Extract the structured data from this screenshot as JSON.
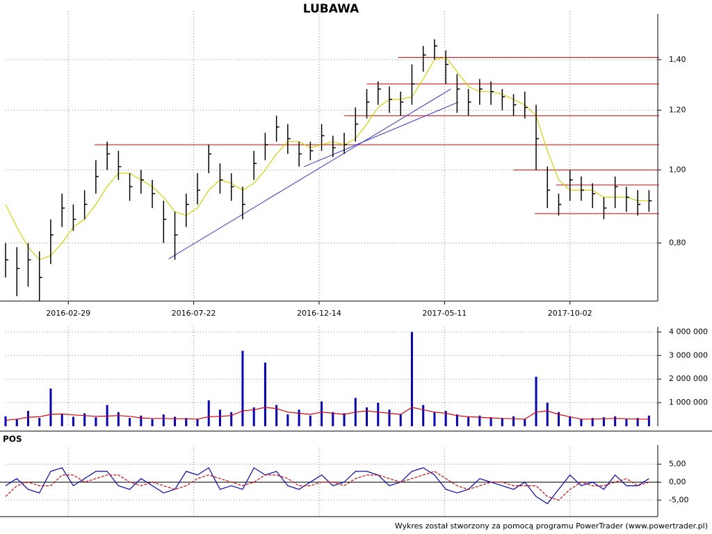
{
  "chart_data": [
    {
      "type": "ohlc",
      "title": "LUBAWA",
      "log_scale": true,
      "grid": true,
      "color": "#000000",
      "x": [
        0,
        9,
        18,
        27,
        36,
        45,
        54,
        63,
        72,
        81,
        90,
        99,
        108,
        117,
        126,
        135,
        144,
        153,
        162,
        171,
        180,
        189,
        198,
        207,
        216,
        225,
        234,
        243,
        252,
        261,
        270,
        279,
        288,
        297,
        306,
        315,
        324,
        333,
        342,
        351,
        360,
        369,
        378,
        387,
        396,
        405,
        414,
        423,
        432,
        441,
        450,
        459,
        468,
        477,
        486,
        495,
        504,
        513
      ],
      "high": [
        0.8,
        0.79,
        0.8,
        0.78,
        0.86,
        0.93,
        0.9,
        0.94,
        1.03,
        1.09,
        1.06,
        0.99,
        1.0,
        0.97,
        0.91,
        0.88,
        0.93,
        0.99,
        1.08,
        1.02,
        0.99,
        0.95,
        1.06,
        1.12,
        1.18,
        1.15,
        1.09,
        1.09,
        1.15,
        1.11,
        1.12,
        1.21,
        1.28,
        1.31,
        1.29,
        1.27,
        1.38,
        1.46,
        1.49,
        1.44,
        1.34,
        1.28,
        1.32,
        1.31,
        1.28,
        1.26,
        1.27,
        1.22,
        1.01,
        0.93,
        1.0,
        0.98,
        0.96,
        0.92,
        0.98,
        0.95,
        0.94,
        0.94
      ],
      "low": [
        0.72,
        0.68,
        0.7,
        0.67,
        0.75,
        0.84,
        0.83,
        0.86,
        0.93,
        1.0,
        0.97,
        0.91,
        0.93,
        0.89,
        0.8,
        0.76,
        0.84,
        0.9,
        0.99,
        0.93,
        0.91,
        0.86,
        0.97,
        1.03,
        1.09,
        1.05,
        1.01,
        1.03,
        1.06,
        1.04,
        1.05,
        1.09,
        1.17,
        1.22,
        1.19,
        1.18,
        1.22,
        1.35,
        1.4,
        1.3,
        1.19,
        1.18,
        1.22,
        1.22,
        1.2,
        1.18,
        1.17,
        1.0,
        0.89,
        0.87,
        0.91,
        0.91,
        0.89,
        0.86,
        0.89,
        0.88,
        0.87,
        0.88
      ],
      "close": [
        0.76,
        0.74,
        0.76,
        0.72,
        0.82,
        0.89,
        0.86,
        0.9,
        0.98,
        1.05,
        1.01,
        0.95,
        0.97,
        0.93,
        0.86,
        0.82,
        0.9,
        0.94,
        1.05,
        0.97,
        0.95,
        0.9,
        1.02,
        1.08,
        1.14,
        1.1,
        1.05,
        1.06,
        1.11,
        1.07,
        1.08,
        1.15,
        1.23,
        1.28,
        1.24,
        1.23,
        1.3,
        1.42,
        1.46,
        1.38,
        1.28,
        1.23,
        1.28,
        1.27,
        1.25,
        1.22,
        1.21,
        1.1,
        0.94,
        0.9,
        0.97,
        0.94,
        0.93,
        0.89,
        0.95,
        0.92,
        0.9,
        0.91
      ],
      "ma": {
        "color": "#d4d400",
        "values": [
          0.9,
          0.84,
          0.79,
          0.76,
          0.77,
          0.8,
          0.84,
          0.86,
          0.9,
          0.95,
          0.99,
          0.99,
          0.97,
          0.95,
          0.92,
          0.88,
          0.87,
          0.89,
          0.94,
          0.97,
          0.96,
          0.94,
          0.96,
          1.0,
          1.05,
          1.09,
          1.09,
          1.07,
          1.08,
          1.09,
          1.08,
          1.1,
          1.15,
          1.21,
          1.24,
          1.24,
          1.25,
          1.32,
          1.4,
          1.41,
          1.35,
          1.29,
          1.27,
          1.27,
          1.26,
          1.24,
          1.22,
          1.18,
          1.06,
          0.97,
          0.94,
          0.94,
          0.94,
          0.92,
          0.92,
          0.92,
          0.91,
          0.91
        ]
      },
      "levels": {
        "color": "#e00000",
        "items": [
          {
            "y": 1.41,
            "from": 313
          },
          {
            "y": 1.3,
            "from": 288
          },
          {
            "y": 1.18,
            "from": 270
          },
          {
            "y": 1.08,
            "from": 71
          },
          {
            "y": 1.0,
            "from": 405
          },
          {
            "y": 0.955,
            "from": 439
          },
          {
            "y": 0.875,
            "from": 422
          }
        ]
      },
      "trendlines": {
        "color": "#3333dd",
        "items": [
          {
            "x": [
              130,
              355
            ],
            "y": [
              0.762,
              1.28
            ]
          },
          {
            "x": [
              238,
              361
            ],
            "y": [
              1.01,
              1.23
            ]
          }
        ]
      },
      "xlim": [
        0,
        520
      ],
      "xticks": [
        {
          "value": 50,
          "label": "2016-02-29"
        },
        {
          "value": 150,
          "label": "2016-07-22"
        },
        {
          "value": 250,
          "label": "2016-12-14"
        },
        {
          "value": 350,
          "label": "2017-05-11"
        },
        {
          "value": 450,
          "label": "2017-10-02"
        }
      ],
      "ylim": [
        0.67,
        1.61
      ],
      "yticks": [
        {
          "value": 0.8,
          "label": "0,80"
        },
        {
          "value": 1.0,
          "label": "1,00"
        },
        {
          "value": 1.2,
          "label": "1,20"
        },
        {
          "value": 1.4,
          "label": "1,40"
        }
      ]
    },
    {
      "type": "bar",
      "color": "#0000cc",
      "grid": true,
      "values": [
        420000,
        300000,
        650000,
        350000,
        1600000,
        500000,
        400000,
        550000,
        380000,
        900000,
        600000,
        350000,
        450000,
        300000,
        500000,
        400000,
        350000,
        300000,
        1100000,
        700000,
        600000,
        3200000,
        800000,
        2700000,
        900000,
        500000,
        700000,
        450000,
        1050000,
        600000,
        550000,
        1200000,
        800000,
        1000000,
        700000,
        500000,
        4000000,
        900000,
        600000,
        650000,
        500000,
        400000,
        450000,
        380000,
        350000,
        420000,
        300000,
        2100000,
        1000000,
        600000,
        400000,
        300000,
        350000,
        380000,
        420000,
        300000,
        350000,
        450000
      ],
      "ma": {
        "color": "#e00000",
        "values": [
          250000,
          300000,
          380000,
          400000,
          500000,
          520000,
          480000,
          450000,
          420000,
          430000,
          450000,
          420000,
          350000,
          330000,
          330000,
          320000,
          320000,
          300000,
          400000,
          420000,
          450000,
          650000,
          700000,
          800000,
          750000,
          600000,
          550000,
          500000,
          600000,
          550000,
          500000,
          600000,
          650000,
          600000,
          550000,
          500000,
          800000,
          700000,
          600000,
          550000,
          450000,
          400000,
          380000,
          350000,
          330000,
          320000,
          300000,
          600000,
          650000,
          500000,
          400000,
          300000,
          300000,
          320000,
          330000,
          320000,
          300000,
          300000
        ]
      },
      "ylim": [
        0,
        4100000
      ],
      "yticks": [
        {
          "value": 1000000,
          "label": "1 000 000"
        },
        {
          "value": 2000000,
          "label": "2 000 000"
        },
        {
          "value": 3000000,
          "label": "3 000 000"
        },
        {
          "value": 4000000,
          "label": "4 000 000"
        }
      ]
    },
    {
      "type": "line",
      "title": "POS",
      "grid": true,
      "series": [
        {
          "color": "#0000cc",
          "dashed": false,
          "values": [
            -1,
            1,
            -2,
            -3,
            3,
            4,
            -1,
            1,
            3,
            3,
            -1,
            -2,
            1,
            -1,
            -3,
            -2,
            3,
            2,
            4,
            -2,
            -1,
            -2,
            4,
            2,
            3,
            -1,
            -2,
            0,
            2,
            -1,
            0,
            3,
            3,
            2,
            -1,
            0,
            3,
            4,
            2,
            -2,
            -3,
            -2,
            1,
            0,
            -1,
            -2,
            0,
            -4,
            -6,
            -2,
            2,
            -1,
            0,
            -2,
            2,
            -1,
            -1,
            1
          ]
        },
        {
          "color": "#e00000",
          "dashed": true,
          "values": [
            -4,
            -1,
            0,
            -1,
            -1,
            2,
            2,
            0,
            1,
            2,
            2,
            0,
            -1,
            0,
            -1,
            -2,
            -1,
            1,
            2,
            1,
            0,
            -1,
            0,
            2,
            2,
            1,
            -1,
            -1,
            0,
            0,
            -1,
            1,
            2,
            2,
            1,
            0,
            1,
            2,
            3,
            1,
            -1,
            -2,
            -1,
            0,
            0,
            -1,
            -1,
            -1,
            -4,
            -5,
            -2,
            0,
            -1,
            -1,
            0,
            1,
            -1,
            0
          ]
        }
      ],
      "ylim": [
        -9.6,
        8.8
      ],
      "yticks": [
        {
          "value": -5,
          "label": "-5,00"
        },
        {
          "value": 0,
          "label": "0,00"
        },
        {
          "value": 5,
          "label": "5,00"
        }
      ]
    }
  ],
  "footer": "Wykres został stworzony za pomocą programu PowerTrader (www.powertrader.pl)"
}
